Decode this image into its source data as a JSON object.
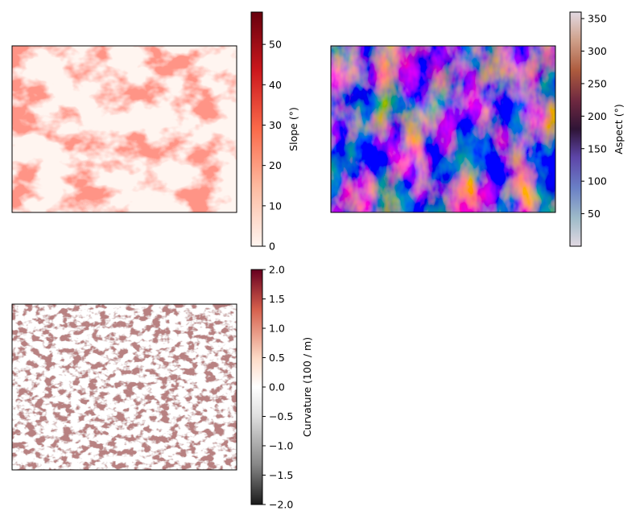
{
  "chart_data": [
    {
      "type": "heatmap",
      "title": "",
      "xlabel": "",
      "ylabel": "",
      "colormap": "Reds",
      "axes_ticks": false,
      "colorbar": {
        "label": "Slope (°)",
        "range": [
          0,
          58
        ],
        "ticks": [
          0,
          10,
          20,
          30,
          40,
          50
        ],
        "tick_labels": [
          "0",
          "10",
          "20",
          "30",
          "40",
          "50"
        ]
      },
      "colors": [
        "#fff5f0",
        "#fcbba1",
        "#fb6a4a",
        "#cb181d",
        "#67000d"
      ]
    },
    {
      "type": "heatmap",
      "title": "",
      "xlabel": "",
      "ylabel": "",
      "colormap": "twilight",
      "axes_ticks": false,
      "colorbar": {
        "label": "Aspect (°)",
        "range": [
          0,
          360
        ],
        "ticks": [
          50,
          100,
          150,
          200,
          250,
          300,
          350
        ],
        "tick_labels": [
          "50",
          "100",
          "150",
          "200",
          "250",
          "300",
          "350"
        ]
      },
      "colors": [
        "#e2d9e2",
        "#9ebbc9",
        "#6a7fc6",
        "#5d45a8",
        "#2f1436",
        "#6e2840",
        "#ad5b3e",
        "#cfa08a",
        "#e2d9e2"
      ]
    },
    {
      "type": "heatmap",
      "title": "",
      "xlabel": "",
      "ylabel": "",
      "colormap": "RdGy_r",
      "axes_ticks": false,
      "colorbar": {
        "label": "Curvature (100 / m)",
        "range": [
          -2.0,
          2.0
        ],
        "ticks": [
          -2.0,
          -1.5,
          -1.0,
          -0.5,
          0.0,
          0.5,
          1.0,
          1.5,
          2.0
        ],
        "tick_labels": [
          "−2.0",
          "−1.5",
          "−1.0",
          "−0.5",
          "0.0",
          "0.5",
          "1.0",
          "1.5",
          "2.0"
        ]
      },
      "colors": [
        "#1a1a1a",
        "#878787",
        "#e0e0e0",
        "#ffffff",
        "#fddbc7",
        "#d6604d",
        "#67001f"
      ]
    }
  ]
}
